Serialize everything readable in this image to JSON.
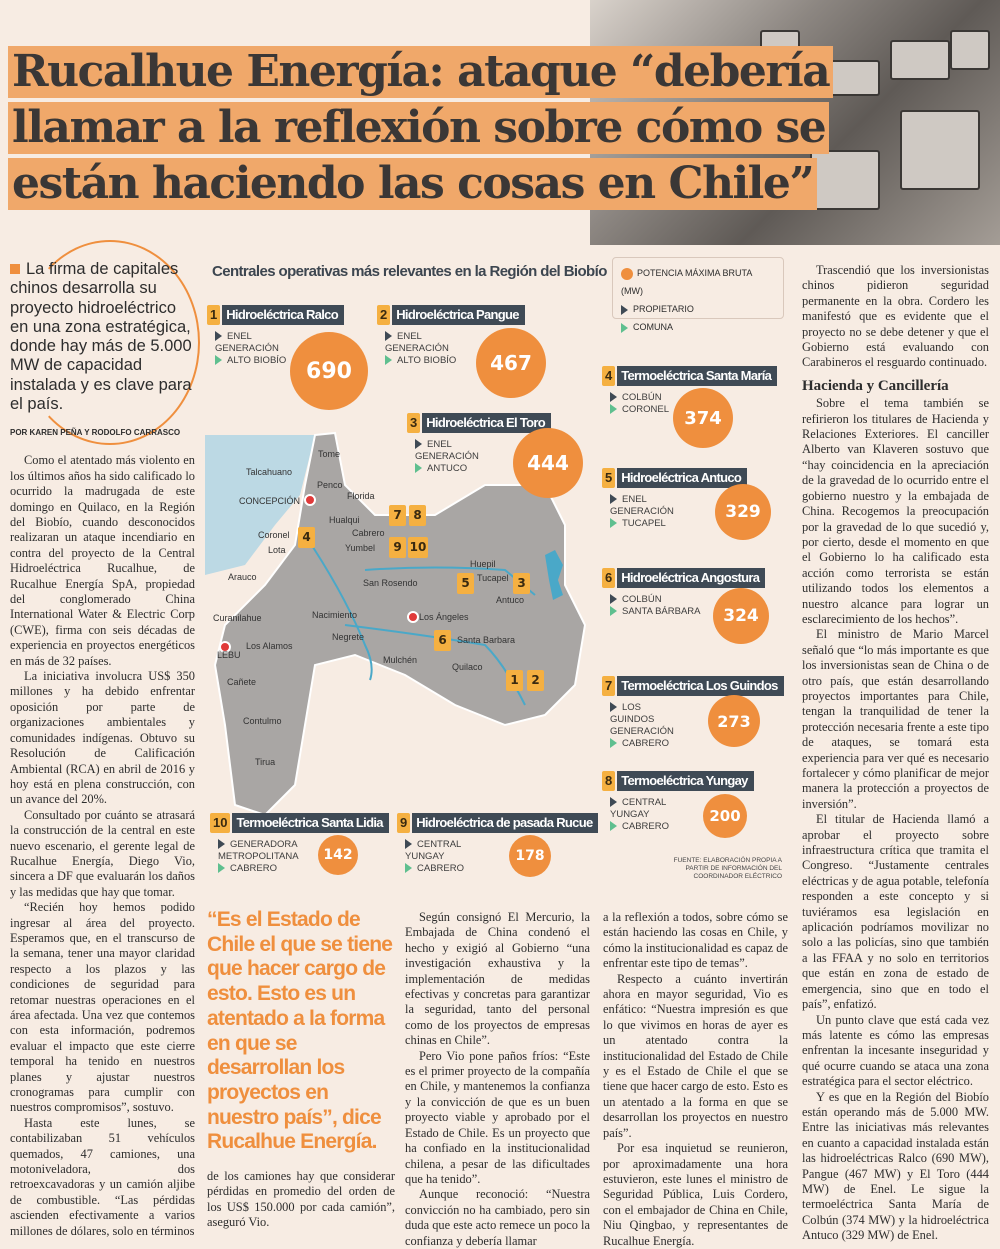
{
  "headline": [
    "Rucalhue Energía: ataque “debería",
    "llamar a la reflexión sobre cómo se",
    "están haciendo las cosas en Chile”"
  ],
  "lead": "La firma de capitales chinos desarrolla su proyecto hidroeléctrico en una zona estratégica, donde hay más de 5.000 MW de capacidad instalada y es clave para el país.",
  "byline": "POR KAREN PEÑA Y RODOLFO CARRASCO",
  "col1": [
    "Como el atentado más violento en los últimos años ha sido calificado lo ocurrido la madrugada de este domingo en Quilaco, en la Región del Biobío, cuando desconocidos realizaran un ataque incendiario en contra del proyecto de la Central Hidroeléctrica Rucalhue, de Rucalhue Energía SpA, propiedad del conglomerado China International Water & Electric Corp (CWE), firma con seis décadas de experiencia en proyectos energéticos en más de 32 países.",
    "La iniciativa involucra US$ 350 millones y ha debido enfrentar oposición por parte de organizaciones ambientales y comunidades indígenas. Obtuvo su Resolución de Calificación Ambiental (RCA) en abril de 2016 y hoy está en plena construcción, con un avance del 20%.",
    "Consultado por cuánto se atrasará la construcción de la central en este nuevo escenario, el gerente legal de Rucalhue Energía, Diego Vio, sincera a DF que evaluarán los daños y las medidas que hay que tomar.",
    "“Recién hoy hemos podido ingresar al área del proyecto. Esperamos que, en el transcurso de la semana, tener una mayor claridad respecto a los plazos y las condiciones de seguridad para retomar nuestras operaciones en el área afectada. Una vez que contemos con esta información, podremos evaluar el impacto que este cierre temporal ha tenido en nuestros planes y ajustar nuestros cronogramas para cumplir con nuestros compromisos”, sostuvo.",
    "Hasta este lunes, se contabilizaban 51 vehículos quemados, 47 camiones, una motoniveladora, dos retroexcavadoras y un camión aljibe de combustible. “Las pérdidas ascienden efectivamente a varios millones de dólares, solo en términos"
  ],
  "col2_tail": "de los camiones hay que considerar pérdidas en promedio del orden de los US$ 150.000 por cada camión”, aseguró Vio.",
  "pull_quote": "“Es el Estado de Chile el que se tiene que hacer cargo de esto. Esto es un atentado a la forma en que se desarrollan los proyectos en nuestro país”, dice Rucalhue Energía.",
  "col3": [
    "Según consignó El Mercurio, la Embajada de China condenó el hecho y exigió al Gobierno “una investigación exhaustiva y la implementación de medidas efectivas y concretas para garantizar la seguridad, tanto del personal como de los proyectos de empresas chinas en Chile”.",
    "Pero Vio pone paños fríos: “Este es el primer proyecto de la compañía en Chile, y mantenemos la confianza y la convicción de que es un buen proyecto viable y aprobado por el Estado de Chile. Es un proyecto que ha confiado en la institucionalidad chilena, a pesar de las dificultades que ha tenido”.",
    "Aunque reconoció: “Nuestra convicción no ha cambiado, pero sin duda que este acto remece un poco la confianza y debería llamar"
  ],
  "col4": [
    "a la reflexión a todos, sobre cómo se están haciendo las cosas en Chile, y cómo la institucionalidad es capaz de enfrentar este tipo de temas”.",
    "Respecto a cuánto invertirán ahora en mayor seguridad, Vio es enfático: “Nuestra impresión es que lo que vivimos en horas de ayer es un atentado contra la institucionalidad del Estado de Chile y es el Estado de Chile el que se tiene que hacer cargo de esto. Esto es un atentado a la forma en que se desarrollan los proyectos en nuestro país”.",
    "Por esa inquietud se reunieron, por aproximadamente una hora estuvieron, este lunes el ministro de Seguridad Pública, Luis Cordero, con el embajador de China en Chile, Niu Qingbao, y representantes de Rucalhue Energía."
  ],
  "col5a": [
    "Trascendió que los inversionistas chinos pidieron seguridad permanente en la obra. Cordero les manifestó que es evidente que el proyecto no se debe detener y que el Gobierno está evaluando con Carabineros el resguardo continuado."
  ],
  "subhead": "Hacienda y Cancillería",
  "col5b": [
    "Sobre el tema también se refirieron los titulares de Hacienda y Relaciones Exteriores. El canciller Alberto van Klaveren sostuvo que “hay coincidencia en la apreciación de la gravedad de lo ocurrido entre el gobierno nuestro y la embajada de China. Recogemos la preocupación por la gravedad de lo que sucedió y, por cierto, desde el momento en que el Gobierno lo ha calificado esta acción como terrorista se están utilizando todos los elementos a nuestro alcance para lograr un esclarecimiento de los hechos”.",
    "El ministro de Mario Marcel señaló que “lo más importante es que los inversionistas sean de China o de otro país, que están desarrollando proyectos importantes para Chile, tengan la tranquilidad de tener la protección necesaria frente a este tipo de ataques, se tomará esta experiencia para ver qué es necesario fortalecer y cómo planificar de mejor manera la protección a proyectos de inversión”.",
    "El titular de Hacienda llamó a aprobar el proyecto sobre infraestructura crítica que tramita el Congreso. “Justamente centrales eléctricas y de agua potable, telefonía responden a este concepto y si tuviéramos esa legislación en aplicación podríamos movilizar no solo a las policías, sino que también a las FFAA y no solo en territorios que están en zona de estado de emergencia, sino que en todo el país”, enfatizó.",
    "Un punto clave que está cada vez más latente es cómo las empresas enfrentan la incesante inseguridad y qué ocurre cuando se ataca una zona estratégica para el sector eléctrico.",
    "Y es que en la Región del Biobío están operando más de 5.000 MW. Entre las iniciativas más relevantes en cuanto a capacidad instalada están las hidroeléctricas Ralco (690 MW), Pangue (467 MW) y El Toro (444 MW) de Enel. Le sigue la termoeléctrica Santa María de Colbún (374 MW) y la hidroeléctrica Antuco (329 MW) de Enel."
  ],
  "graphic": {
    "title": "Centrales operativas más relevantes en la Región del Biobío",
    "legend": [
      "POTENCIA MÁXIMA BRUTA (MW)",
      "PROPIETARIO",
      "COMUNA"
    ],
    "colors": {
      "circle": "#ef8f3e",
      "badge": "#f5b041",
      "label": "#3f4a55",
      "commune": "#5fbf8f",
      "map": "#a9a6a4",
      "sea": "#bcd9e4",
      "river": "#4aa8c8"
    },
    "plants": [
      {
        "n": "1",
        "name": "Hidroeléctrica Ralco",
        "owner": "ENEL GENERACIÓN",
        "commune": "ALTO BIOBÍO",
        "mw": 690
      },
      {
        "n": "2",
        "name": "Hidroeléctrica Pangue",
        "owner": "ENEL GENERACIÓN",
        "commune": "ALTO BIOBÍO",
        "mw": 467
      },
      {
        "n": "3",
        "name": "Hidroeléctrica El Toro",
        "owner": "ENEL GENERACIÓN",
        "commune": "ANTUCO",
        "mw": 444
      },
      {
        "n": "4",
        "name": "Termoeléctrica Santa María",
        "owner": "COLBÚN",
        "commune": "CORONEL",
        "mw": 374
      },
      {
        "n": "5",
        "name": "Hidroeléctrica Antuco",
        "owner": "ENEL GENERACIÓN",
        "commune": "TUCAPEL",
        "mw": 329
      },
      {
        "n": "6",
        "name": "Hidroeléctrica Angostura",
        "owner": "COLBÚN",
        "commune": "SANTA BÁRBARA",
        "mw": 324
      },
      {
        "n": "7",
        "name": "Termoeléctrica Los Guindos",
        "owner": "LOS GUINDOS GENERACIÓN",
        "commune": "CABRERO",
        "mw": 273
      },
      {
        "n": "8",
        "name": "Termoeléctrica Yungay",
        "owner": "CENTRAL YUNGAY",
        "commune": "CABRERO",
        "mw": 200
      },
      {
        "n": "9",
        "name": "Hidroeléctrica de pasada Rucue",
        "owner": "CENTRAL YUNGAY",
        "commune": "CABRERO",
        "mw": 178
      },
      {
        "n": "10",
        "name": "Termoeléctrica Santa Lidia",
        "owner": "GENERADORA METROPOLITANA",
        "commune": "CABRERO",
        "mw": 142
      }
    ],
    "cities": [
      "Tome",
      "Talcahuano",
      "Penco",
      "Florida",
      "CONCEPCIÓN",
      "Hualqui",
      "Cabrero",
      "Coronel",
      "Lota",
      "Yumbel",
      "Huepil",
      "Tucapel",
      "Arauco",
      "San Rosendo",
      "Antuco",
      "Curanilahue",
      "Nacimiento",
      "Los Ángeles",
      "LEBU",
      "Los Alamos",
      "Negrete",
      "Santa Barbara",
      "Mulchén",
      "Quilaco",
      "Cañete",
      "Contulmo",
      "Tirua"
    ],
    "source": "FUENTE: ELABORACIÓN PROPIA A PARTIR DE INFORMACIÓN DEL COORDINADOR ELÉCTRICO"
  }
}
